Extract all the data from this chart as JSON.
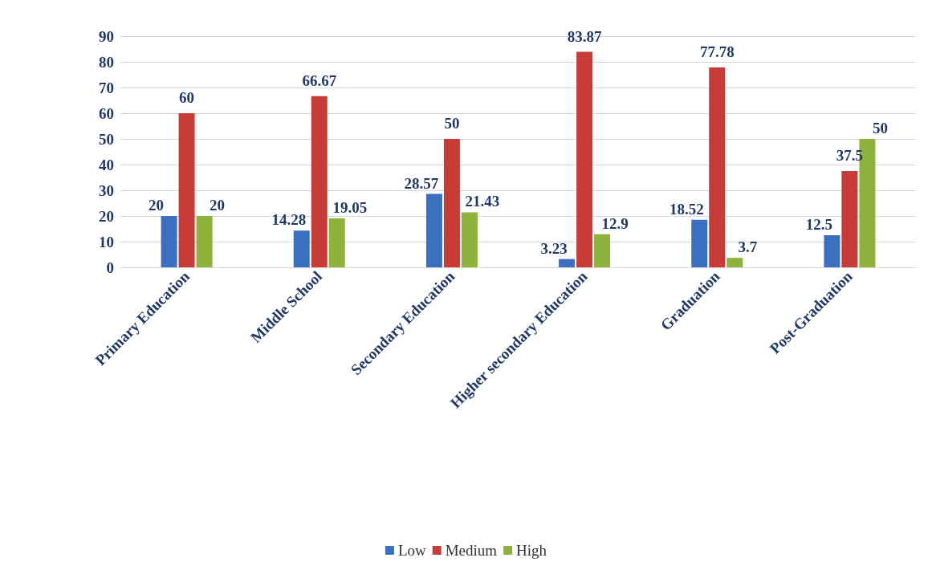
{
  "chart_data": {
    "type": "bar",
    "categories": [
      "Primary Education",
      "Middle School",
      "Secondary Education",
      "Higher secondary Education",
      "Graduation",
      "Post-Graduation"
    ],
    "series": [
      {
        "name": "Low",
        "color": "#3b6fbf",
        "values": [
          20,
          14.28,
          28.57,
          3.23,
          18.52,
          12.5
        ]
      },
      {
        "name": "Medium",
        "color": "#c73c36",
        "values": [
          60,
          66.67,
          50,
          83.87,
          77.78,
          37.5
        ]
      },
      {
        "name": "High",
        "color": "#8db33c",
        "values": [
          20,
          19.05,
          21.43,
          12.9,
          3.7,
          50
        ]
      }
    ],
    "ylim": [
      0,
      90
    ],
    "yticks": [
      0,
      10,
      20,
      30,
      40,
      50,
      60,
      70,
      80,
      90
    ],
    "grid": "y",
    "legend": "bottom",
    "data_labels": true
  }
}
